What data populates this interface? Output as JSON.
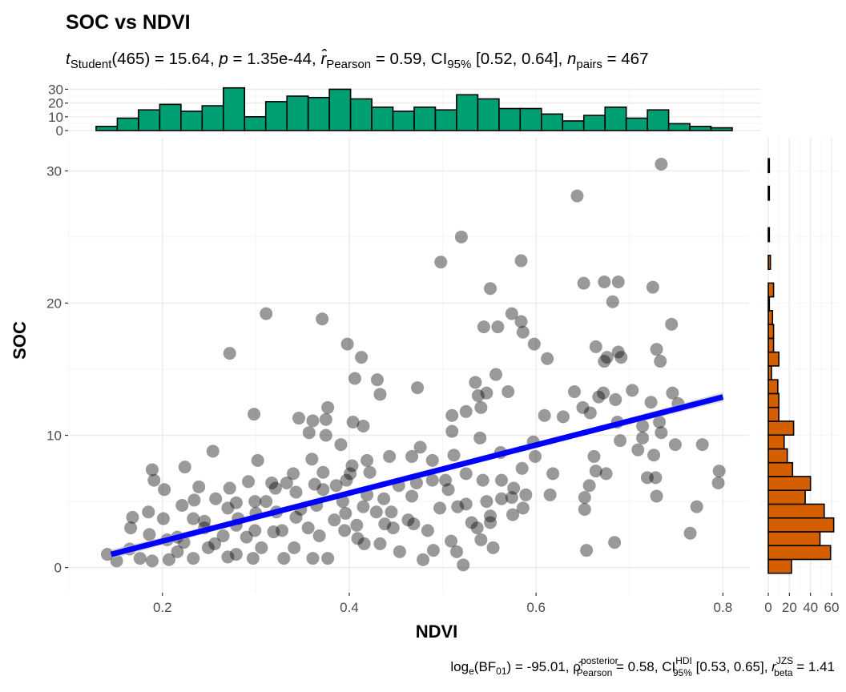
{
  "title": "SOC vs NDVI",
  "subtitle": {
    "t_sym": "t",
    "t_sub": "Student",
    "t_val": "(465) = 15.64, ",
    "p_sym": "p",
    "p_val": " = 1.35e-44, ",
    "r_sym": "r̂",
    "r_sub": "Pearson",
    "r_val": " = 0.59, CI",
    "ci_sub": "95%",
    "ci_val": " [0.52, 0.64], ",
    "n_sym": "n",
    "n_sub": "pairs",
    "n_val": " = 467"
  },
  "caption": {
    "bf_pre": "log",
    "bf_sub_e": "e",
    "bf_mid": "(BF",
    "bf_sub": "01",
    "bf_val": ") = -95.01, ",
    "rho_sym": "ρ̂",
    "rho_sup": "posterior",
    "rho_sub": "Pearson",
    "rho_val": " = 0.58, CI",
    "ci_sup": "HDI",
    "ci_sub": "95%",
    "ci_val": " [0.53, 0.65], ",
    "r_sym": "r",
    "r_sup": "JZS",
    "r_sub": "beta",
    "r_val": " = 1.41"
  },
  "chart_data": {
    "type": "scatter",
    "title": "SOC vs NDVI",
    "xlabel": "NDVI",
    "ylabel": "SOC",
    "xlim": [
      0.099,
      0.828
    ],
    "ylim": [
      -1.9,
      32.5
    ],
    "x_ticks": [
      0.2,
      0.4,
      0.6,
      0.8
    ],
    "x_tick_labels": [
      "0.2",
      "0.4",
      "0.6",
      "0.8"
    ],
    "y_ticks": [
      0,
      10,
      20,
      30
    ],
    "y_tick_labels": [
      "0",
      "10",
      "20",
      "30"
    ],
    "grid": true,
    "colors": {
      "points": "#000000",
      "line": "#0000FF",
      "band": "#BEBEBE",
      "x_hist": "#009E73",
      "y_hist": "#D55E00"
    },
    "regression": {
      "x": [
        0.145,
        0.8
      ],
      "y": [
        1.0,
        12.9
      ],
      "ci_halfwidth_ends": 0.35,
      "ci_halfwidth_center": 0.15
    },
    "points": [
      [
        0.734,
        30.5
      ],
      [
        0.644,
        28.1
      ],
      [
        0.52,
        25.0
      ],
      [
        0.498,
        23.1
      ],
      [
        0.584,
        23.2
      ],
      [
        0.651,
        21.5
      ],
      [
        0.673,
        21.6
      ],
      [
        0.688,
        21.6
      ],
      [
        0.725,
        21.2
      ],
      [
        0.551,
        21.1
      ],
      [
        0.682,
        20.1
      ],
      [
        0.311,
        19.2
      ],
      [
        0.371,
        18.8
      ],
      [
        0.574,
        19.2
      ],
      [
        0.584,
        18.6
      ],
      [
        0.544,
        18.2
      ],
      [
        0.559,
        18.2
      ],
      [
        0.745,
        18.4
      ],
      [
        0.586,
        17.8
      ],
      [
        0.398,
        16.9
      ],
      [
        0.598,
        16.9
      ],
      [
        0.272,
        16.2
      ],
      [
        0.413,
        15.9
      ],
      [
        0.612,
        15.8
      ],
      [
        0.664,
        16.7
      ],
      [
        0.688,
        16.3
      ],
      [
        0.676,
        15.9
      ],
      [
        0.691,
        15.9
      ],
      [
        0.729,
        16.5
      ],
      [
        0.733,
        15.6
      ],
      [
        0.673,
        15.6
      ],
      [
        0.641,
        13.3
      ],
      [
        0.535,
        14.0
      ],
      [
        0.557,
        14.6
      ],
      [
        0.43,
        14.2
      ],
      [
        0.406,
        14.3
      ],
      [
        0.433,
        13.1
      ],
      [
        0.473,
        13.6
      ],
      [
        0.547,
        13.2
      ],
      [
        0.57,
        13.3
      ],
      [
        0.703,
        13.4
      ],
      [
        0.723,
        12.5
      ],
      [
        0.667,
        12.9
      ],
      [
        0.672,
        13.2
      ],
      [
        0.65,
        12.1
      ],
      [
        0.685,
        12.7
      ],
      [
        0.746,
        13.2
      ],
      [
        0.752,
        12.4
      ],
      [
        0.298,
        11.6
      ],
      [
        0.377,
        12.1
      ],
      [
        0.375,
        11.2
      ],
      [
        0.346,
        11.3
      ],
      [
        0.361,
        11.1
      ],
      [
        0.404,
        11.0
      ],
      [
        0.415,
        10.7
      ],
      [
        0.51,
        11.5
      ],
      [
        0.525,
        11.8
      ],
      [
        0.538,
        13.0
      ],
      [
        0.541,
        12.1
      ],
      [
        0.629,
        11.4
      ],
      [
        0.658,
        11.7
      ],
      [
        0.609,
        11.5
      ],
      [
        0.687,
        11.0
      ],
      [
        0.714,
        10.7
      ],
      [
        0.732,
        11.0
      ],
      [
        0.69,
        9.6
      ],
      [
        0.714,
        9.8
      ],
      [
        0.734,
        10.2
      ],
      [
        0.357,
        10.2
      ],
      [
        0.375,
        10.0
      ],
      [
        0.51,
        10.3
      ],
      [
        0.54,
        9.8
      ],
      [
        0.597,
        9.5
      ],
      [
        0.709,
        8.9
      ],
      [
        0.726,
        8.5
      ],
      [
        0.749,
        9.3
      ],
      [
        0.778,
        9.3
      ],
      [
        0.796,
        7.3
      ],
      [
        0.795,
        6.4
      ],
      [
        0.765,
        2.6
      ],
      [
        0.772,
        4.6
      ],
      [
        0.719,
        6.8
      ],
      [
        0.729,
        5.4
      ],
      [
        0.728,
        6.8
      ],
      [
        0.662,
        8.4
      ],
      [
        0.664,
        7.3
      ],
      [
        0.657,
        6.2
      ],
      [
        0.652,
        5.3
      ],
      [
        0.675,
        7.1
      ],
      [
        0.652,
        4.4
      ],
      [
        0.654,
        1.3
      ],
      [
        0.684,
        1.9
      ],
      [
        0.554,
        1.5
      ],
      [
        0.479,
        0.6
      ],
      [
        0.551,
        3.4
      ],
      [
        0.525,
        7.1
      ],
      [
        0.503,
        6.6
      ],
      [
        0.543,
        6.6
      ],
      [
        0.563,
        6.6
      ],
      [
        0.589,
        5.5
      ],
      [
        0.586,
        4.5
      ],
      [
        0.615,
        5.5
      ],
      [
        0.618,
        7.1
      ],
      [
        0.585,
        7.5
      ],
      [
        0.562,
        8.7
      ],
      [
        0.599,
        8.4
      ],
      [
        0.476,
        9.1
      ],
      [
        0.467,
        8.4
      ],
      [
        0.489,
        8.1
      ],
      [
        0.489,
        6.6
      ],
      [
        0.419,
        8.1
      ],
      [
        0.422,
        7.2
      ],
      [
        0.391,
        9.3
      ],
      [
        0.36,
        8.2
      ],
      [
        0.302,
        8.1
      ],
      [
        0.254,
        8.8
      ],
      [
        0.224,
        7.6
      ],
      [
        0.189,
        7.4
      ],
      [
        0.191,
        6.6
      ],
      [
        0.202,
        5.9
      ],
      [
        0.221,
        4.7
      ],
      [
        0.168,
        3.8
      ],
      [
        0.166,
        3.0
      ],
      [
        0.165,
        1.4
      ],
      [
        0.141,
        1.0
      ],
      [
        0.151,
        0.5
      ],
      [
        0.176,
        0.7
      ],
      [
        0.189,
        0.5
      ],
      [
        0.205,
        2.1
      ],
      [
        0.233,
        3.7
      ],
      [
        0.245,
        3.5
      ],
      [
        0.272,
        6.0
      ],
      [
        0.279,
        4.9
      ],
      [
        0.279,
        3.2
      ],
      [
        0.279,
        1.0
      ],
      [
        0.27,
        0.8
      ],
      [
        0.256,
        1.8
      ],
      [
        0.306,
        1.5
      ],
      [
        0.321,
        6.0
      ],
      [
        0.343,
        5.7
      ],
      [
        0.348,
        4.4
      ],
      [
        0.356,
        3.0
      ],
      [
        0.368,
        2.4
      ],
      [
        0.377,
        0.7
      ],
      [
        0.361,
        0.7
      ],
      [
        0.384,
        3.6
      ],
      [
        0.396,
        4.1
      ],
      [
        0.408,
        3.2
      ],
      [
        0.416,
        1.8
      ],
      [
        0.433,
        1.8
      ],
      [
        0.419,
        5.5
      ],
      [
        0.437,
        5.2
      ],
      [
        0.445,
        4.2
      ],
      [
        0.447,
        3.0
      ],
      [
        0.463,
        3.6
      ],
      [
        0.467,
        5.4
      ],
      [
        0.484,
        2.8
      ],
      [
        0.49,
        1.3
      ],
      [
        0.509,
        2.0
      ],
      [
        0.515,
        1.2
      ],
      [
        0.522,
        0.2
      ],
      [
        0.506,
        5.9
      ],
      [
        0.516,
        4.6
      ],
      [
        0.525,
        4.8
      ],
      [
        0.531,
        3.4
      ],
      [
        0.537,
        3.0
      ],
      [
        0.541,
        2.1
      ],
      [
        0.575,
        4.0
      ],
      [
        0.574,
        5.3
      ],
      [
        0.234,
        5.1
      ],
      [
        0.245,
        3.0
      ],
      [
        0.223,
        1.9
      ],
      [
        0.216,
        1.2
      ],
      [
        0.207,
        0.6
      ],
      [
        0.233,
        0.7
      ],
      [
        0.249,
        1.5
      ],
      [
        0.299,
        2.8
      ],
      [
        0.3,
        4.1
      ],
      [
        0.29,
        2.3
      ],
      [
        0.297,
        0.7
      ],
      [
        0.33,
        0.7
      ],
      [
        0.341,
        1.5
      ],
      [
        0.328,
        2.8
      ],
      [
        0.322,
        4.2
      ],
      [
        0.319,
        2.7
      ],
      [
        0.343,
        3.8
      ],
      [
        0.365,
        4.7
      ],
      [
        0.372,
        5.9
      ],
      [
        0.386,
        6.2
      ],
      [
        0.393,
        5.0
      ],
      [
        0.401,
        7.1
      ],
      [
        0.397,
        6.6
      ],
      [
        0.372,
        7.2
      ],
      [
        0.333,
        6.4
      ],
      [
        0.317,
        6.4
      ],
      [
        0.34,
        7.1
      ],
      [
        0.292,
        6.5
      ],
      [
        0.27,
        4.5
      ],
      [
        0.257,
        5.2
      ],
      [
        0.299,
        5.0
      ],
      [
        0.311,
        5.0
      ],
      [
        0.281,
        3.7
      ],
      [
        0.265,
        2.4
      ],
      [
        0.185,
        4.2
      ],
      [
        0.186,
        2.5
      ],
      [
        0.201,
        3.7
      ],
      [
        0.216,
        2.3
      ],
      [
        0.415,
        4.6
      ],
      [
        0.429,
        4.2
      ],
      [
        0.453,
        6.2
      ],
      [
        0.472,
        6.4
      ],
      [
        0.454,
        1.2
      ],
      [
        0.409,
        2.2
      ],
      [
        0.395,
        2.8
      ],
      [
        0.438,
        3.3
      ],
      [
        0.469,
        3.3
      ],
      [
        0.497,
        4.5
      ],
      [
        0.547,
        5.0
      ],
      [
        0.551,
        3.9
      ],
      [
        0.563,
        5.2
      ],
      [
        0.576,
        6.0
      ],
      [
        0.512,
        8.5
      ],
      [
        0.443,
        8.4
      ],
      [
        0.403,
        7.7
      ],
      [
        0.363,
        6.3
      ],
      [
        0.239,
        6.1
      ]
    ],
    "x_hist": {
      "bin_start": 0.129,
      "bin_width": 0.0227,
      "counts": [
        3,
        9,
        15,
        19,
        14,
        18,
        31,
        10,
        21,
        25,
        24,
        30,
        23,
        17,
        14,
        17,
        15,
        26,
        23,
        16,
        16,
        12,
        7,
        11,
        17,
        9,
        15,
        5,
        3,
        2
      ],
      "y_ticks": [
        0,
        10,
        20,
        30
      ],
      "y_tick_labels": [
        "0",
        "10",
        "20",
        "30"
      ],
      "ylim": [
        0,
        32
      ]
    },
    "y_hist": {
      "bin_start": -0.43,
      "bin_width": 1.045,
      "counts": [
        22,
        59,
        49,
        62,
        53,
        35,
        40,
        23,
        18,
        15,
        24,
        10,
        10,
        9,
        3,
        10,
        5,
        5,
        4,
        1,
        5,
        0,
        2,
        0,
        1,
        0,
        0,
        1,
        0,
        1
      ],
      "x_ticks": [
        0,
        20,
        40,
        60
      ],
      "x_tick_labels": [
        "0",
        "20",
        "40",
        "60"
      ],
      "xlim": [
        0,
        67
      ]
    }
  }
}
